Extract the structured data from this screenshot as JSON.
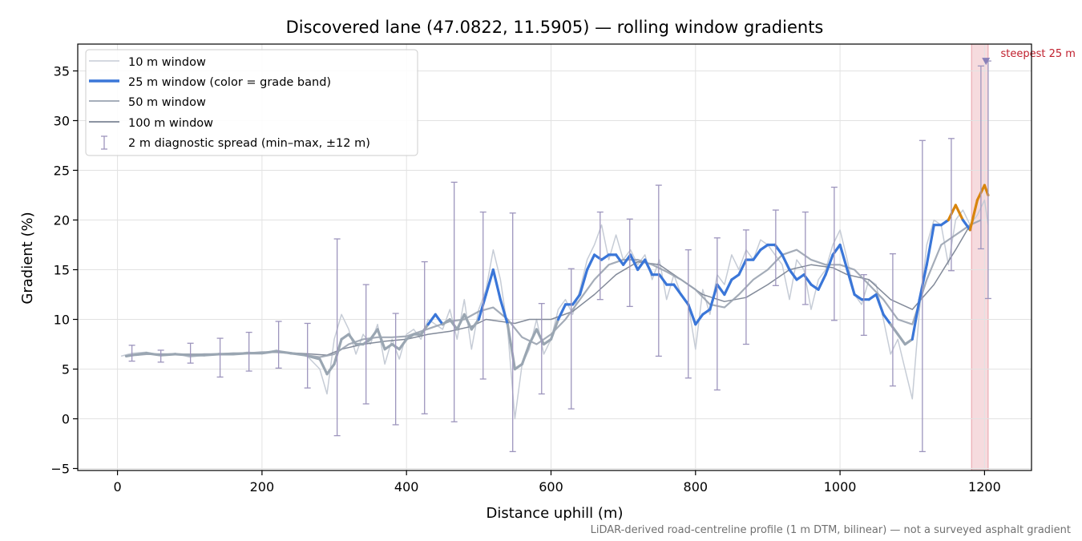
{
  "chart_data": {
    "type": "line",
    "title": "Discovered lane (47.0822, 11.5905) — rolling window gradients",
    "xlabel": "Distance uphill (m)",
    "ylabel": "Gradient (%)",
    "xlim": [
      -55,
      1265
    ],
    "ylim": [
      -5.2,
      37.7
    ],
    "xticks": [
      0,
      200,
      400,
      600,
      800,
      1000,
      1200
    ],
    "yticks": [
      -5,
      0,
      5,
      10,
      15,
      20,
      25,
      30,
      35
    ],
    "grid": true,
    "legend_position": "top-left",
    "footnote": "LiDAR-derived road-centreline profile (1 m DTM, bilinear) — not a surveyed asphalt gradient",
    "highlight": {
      "x_range": [
        1182,
        1205
      ],
      "label": "steepest 25 m",
      "point": {
        "x": 1202,
        "y": 36
      },
      "color": "#e8a0a8",
      "text_color": "#c0202e"
    },
    "grade_band_colors": {
      "under_10": "#9aa6b2",
      "10_to_20": "#3a76d8",
      "over_20": "#d8850e"
    },
    "series": [
      {
        "name": "10 m window",
        "color": "#c6ccd6",
        "x": [
          5,
          20,
          40,
          60,
          80,
          100,
          120,
          140,
          160,
          180,
          200,
          220,
          240,
          260,
          280,
          290,
          300,
          310,
          320,
          330,
          340,
          350,
          360,
          370,
          380,
          390,
          400,
          410,
          420,
          430,
          440,
          450,
          460,
          470,
          480,
          490,
          500,
          510,
          520,
          530,
          540,
          550,
          560,
          570,
          580,
          590,
          600,
          610,
          620,
          630,
          640,
          650,
          660,
          670,
          680,
          690,
          700,
          710,
          720,
          730,
          740,
          750,
          760,
          770,
          780,
          790,
          800,
          810,
          820,
          830,
          840,
          850,
          860,
          870,
          880,
          890,
          900,
          910,
          920,
          930,
          940,
          950,
          960,
          970,
          980,
          990,
          1000,
          1010,
          1020,
          1030,
          1040,
          1050,
          1060,
          1070,
          1080,
          1090,
          1100,
          1110,
          1120,
          1130,
          1140,
          1150,
          1160,
          1170,
          1180,
          1190,
          1200,
          1205
        ],
        "values": [
          6.3,
          6.6,
          6.7,
          6.4,
          6.6,
          6.2,
          6.4,
          6.5,
          6.5,
          6.7,
          6.6,
          6.9,
          6.5,
          6.5,
          5.0,
          2.5,
          8.0,
          10.5,
          9.0,
          6.5,
          8.5,
          7.5,
          9.5,
          5.5,
          8.0,
          6.0,
          8.5,
          9.0,
          8.0,
          10.0,
          9.5,
          9.0,
          11.0,
          8.0,
          12.0,
          7.0,
          11.0,
          13.0,
          17.0,
          14.0,
          9.0,
          0.0,
          5.5,
          7.0,
          10.0,
          6.5,
          8.0,
          11.0,
          12.0,
          10.5,
          13.0,
          16.0,
          17.5,
          19.5,
          16.0,
          18.5,
          16.0,
          17.0,
          15.5,
          16.5,
          14.0,
          16.0,
          12.0,
          14.5,
          12.5,
          11.5,
          7.0,
          13.0,
          10.5,
          14.5,
          13.5,
          16.5,
          15.0,
          17.0,
          16.0,
          18.0,
          17.5,
          16.5,
          15.5,
          12.0,
          16.0,
          15.0,
          11.0,
          14.0,
          15.0,
          17.5,
          19.0,
          16.0,
          12.5,
          11.5,
          14.0,
          13.5,
          10.0,
          6.5,
          8.0,
          5.0,
          2.0,
          11.0,
          17.5,
          20.0,
          19.5,
          15.5,
          20.0,
          21.0,
          19.5,
          20.5,
          22.0,
          19.5
        ]
      },
      {
        "name": "25 m window (color = grade band)",
        "color": "#3a76d8",
        "x": [
          12,
          20,
          40,
          60,
          80,
          100,
          120,
          140,
          160,
          180,
          200,
          220,
          240,
          260,
          280,
          290,
          300,
          310,
          320,
          330,
          340,
          350,
          360,
          370,
          380,
          390,
          400,
          410,
          420,
          430,
          440,
          450,
          460,
          470,
          480,
          490,
          500,
          510,
          520,
          530,
          540,
          550,
          560,
          570,
          580,
          590,
          600,
          610,
          620,
          630,
          640,
          650,
          660,
          670,
          680,
          690,
          700,
          710,
          720,
          730,
          740,
          750,
          760,
          770,
          780,
          790,
          800,
          810,
          820,
          830,
          840,
          850,
          860,
          870,
          880,
          890,
          900,
          910,
          920,
          930,
          940,
          950,
          960,
          970,
          980,
          990,
          1000,
          1010,
          1020,
          1030,
          1040,
          1050,
          1060,
          1070,
          1080,
          1090,
          1100,
          1110,
          1120,
          1130,
          1140,
          1150,
          1160,
          1170,
          1180,
          1190,
          1200,
          1205
        ],
        "values": [
          6.3,
          6.4,
          6.6,
          6.4,
          6.5,
          6.4,
          6.4,
          6.5,
          6.5,
          6.6,
          6.6,
          6.8,
          6.6,
          6.4,
          6.0,
          4.5,
          5.5,
          8.0,
          8.5,
          7.5,
          7.5,
          8.0,
          9.0,
          7.0,
          7.5,
          7.0,
          8.0,
          8.5,
          8.5,
          9.5,
          10.5,
          9.5,
          10.0,
          9.0,
          10.5,
          9.0,
          10.0,
          12.5,
          15.0,
          12.0,
          9.5,
          5.0,
          5.5,
          7.5,
          9.0,
          7.5,
          8.0,
          10.0,
          11.5,
          11.5,
          12.5,
          15.0,
          16.5,
          16.0,
          16.5,
          16.5,
          15.5,
          16.5,
          15.0,
          16.0,
          14.5,
          14.5,
          13.5,
          13.5,
          12.5,
          11.5,
          9.5,
          10.5,
          11.0,
          13.5,
          12.5,
          14.0,
          14.5,
          16.0,
          16.0,
          17.0,
          17.5,
          17.5,
          16.5,
          15.0,
          14.0,
          14.5,
          13.5,
          13.0,
          14.5,
          16.5,
          17.5,
          15.0,
          12.5,
          12.0,
          12.0,
          12.5,
          10.5,
          9.5,
          8.5,
          7.5,
          8.0,
          12.0,
          15.5,
          19.5,
          19.5,
          20.0,
          21.5,
          20.0,
          19.0,
          22.0,
          23.5,
          22.5
        ]
      },
      {
        "name": "50 m window",
        "color": "#9aa3b0",
        "x": [
          25,
          40,
          60,
          80,
          100,
          120,
          140,
          160,
          180,
          200,
          220,
          240,
          260,
          280,
          300,
          320,
          340,
          360,
          380,
          400,
          420,
          440,
          460,
          480,
          500,
          520,
          540,
          560,
          580,
          600,
          620,
          640,
          660,
          680,
          700,
          720,
          740,
          760,
          780,
          800,
          820,
          840,
          860,
          880,
          900,
          920,
          940,
          960,
          980,
          1000,
          1020,
          1040,
          1060,
          1080,
          1100,
          1120,
          1140,
          1160,
          1180,
          1195
        ],
        "values": [
          6.4,
          6.5,
          6.5,
          6.5,
          6.4,
          6.5,
          6.5,
          6.6,
          6.6,
          6.7,
          6.7,
          6.6,
          6.4,
          6.2,
          6.5,
          7.5,
          8.0,
          8.2,
          8.2,
          8.3,
          8.8,
          9.3,
          9.8,
          10.0,
          10.8,
          11.2,
          10.0,
          8.2,
          7.5,
          8.5,
          10.0,
          12.0,
          14.0,
          15.5,
          16.0,
          16.0,
          15.5,
          14.8,
          14.0,
          13.0,
          11.5,
          11.2,
          12.5,
          14.0,
          15.0,
          16.5,
          17.0,
          16.0,
          15.5,
          15.5,
          15.0,
          13.5,
          12.0,
          10.0,
          9.5,
          14.0,
          17.5,
          18.5,
          19.5,
          20.0
        ]
      },
      {
        "name": "100 m window",
        "color": "#7b8494",
        "x": [
          50,
          70,
          100,
          130,
          160,
          190,
          220,
          250,
          270,
          290,
          310,
          340,
          370,
          400,
          430,
          460,
          490,
          510,
          530,
          550,
          570,
          600,
          630,
          660,
          690,
          720,
          750,
          780,
          810,
          840,
          870,
          900,
          930,
          960,
          990,
          1010,
          1040,
          1070,
          1100,
          1130,
          1160,
          1180
        ],
        "values": [
          6.5,
          6.5,
          6.5,
          6.5,
          6.6,
          6.6,
          6.7,
          6.6,
          6.5,
          6.4,
          7.0,
          7.5,
          7.8,
          8.0,
          8.5,
          8.8,
          9.3,
          10.0,
          9.8,
          9.6,
          10.0,
          10.0,
          10.8,
          12.5,
          14.5,
          15.8,
          15.5,
          14.0,
          12.5,
          11.8,
          12.2,
          13.5,
          15.0,
          15.5,
          15.2,
          14.5,
          14.0,
          12.0,
          11.0,
          13.5,
          17.0,
          19.5
        ]
      }
    ],
    "error_bars": {
      "name": "2 m diagnostic spread (min–max, ±12 m)",
      "color": "#9d95bd",
      "points": [
        {
          "x": 20,
          "min": 5.8,
          "max": 7.4
        },
        {
          "x": 60,
          "min": 5.7,
          "max": 6.9
        },
        {
          "x": 101,
          "min": 5.6,
          "max": 7.6
        },
        {
          "x": 142,
          "min": 4.2,
          "max": 8.1
        },
        {
          "x": 182,
          "min": 4.8,
          "max": 8.7
        },
        {
          "x": 223,
          "min": 5.1,
          "max": 9.8
        },
        {
          "x": 263,
          "min": 3.1,
          "max": 9.6
        },
        {
          "x": 304,
          "min": -1.7,
          "max": 18.1
        },
        {
          "x": 344,
          "min": 1.5,
          "max": 13.5
        },
        {
          "x": 385,
          "min": -0.6,
          "max": 10.6
        },
        {
          "x": 425,
          "min": 0.5,
          "max": 15.8
        },
        {
          "x": 466,
          "min": -0.3,
          "max": 23.8
        },
        {
          "x": 506,
          "min": 4.0,
          "max": 20.8
        },
        {
          "x": 547,
          "min": -3.3,
          "max": 20.7
        },
        {
          "x": 587,
          "min": 2.5,
          "max": 11.6
        },
        {
          "x": 628,
          "min": 1.0,
          "max": 15.1
        },
        {
          "x": 668,
          "min": 12.0,
          "max": 20.8
        },
        {
          "x": 709,
          "min": 11.3,
          "max": 20.1
        },
        {
          "x": 749,
          "min": 6.3,
          "max": 23.5
        },
        {
          "x": 790,
          "min": 4.1,
          "max": 17.0
        },
        {
          "x": 830,
          "min": 2.9,
          "max": 18.2
        },
        {
          "x": 870,
          "min": 7.5,
          "max": 19.0
        },
        {
          "x": 911,
          "min": 13.4,
          "max": 21.0
        },
        {
          "x": 952,
          "min": 11.5,
          "max": 20.8
        },
        {
          "x": 992,
          "min": 9.9,
          "max": 23.3
        },
        {
          "x": 1033,
          "min": 8.4,
          "max": 14.5
        },
        {
          "x": 1073,
          "min": 3.3,
          "max": 16.6
        },
        {
          "x": 1114,
          "min": -3.3,
          "max": 28.0
        },
        {
          "x": 1154,
          "min": 14.9,
          "max": 28.2
        },
        {
          "x": 1195,
          "min": 17.1,
          "max": 35.5
        },
        {
          "x": 1205,
          "min": 12.1,
          "max": 36.0
        }
      ]
    }
  }
}
